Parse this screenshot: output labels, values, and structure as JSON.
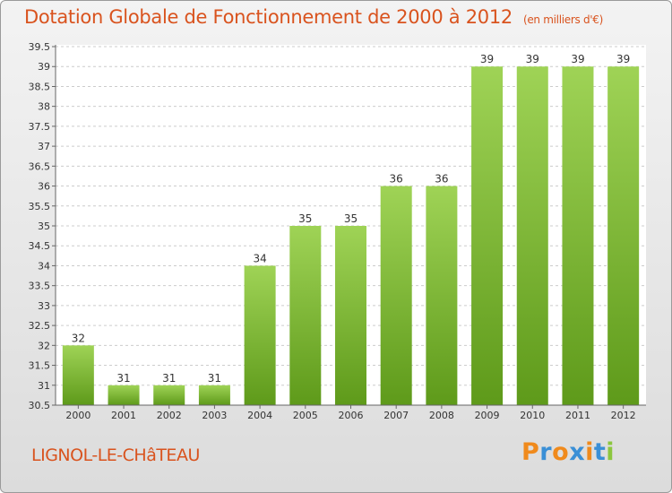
{
  "title": "Dotation Globale de Fonctionnement de 2000 à 2012",
  "unit": "(en milliers d'€)",
  "location": "LIGNOL-LE-CHâTEAU",
  "logo": {
    "text": "Proxiti",
    "colors": [
      "#f08a1c",
      "#3a8fd6",
      "#f08a1c",
      "#3a8fd6",
      "#f08a1c",
      "#3a8fd6",
      "#8cc63e"
    ]
  },
  "colors": {
    "accent": "#d9531e",
    "bar_light": "#9fd356",
    "bar_dark": "#5e9a1a"
  },
  "chart_data": {
    "type": "bar",
    "categories": [
      "2000",
      "2001",
      "2002",
      "2003",
      "2004",
      "2005",
      "2006",
      "2007",
      "2008",
      "2009",
      "2010",
      "2011",
      "2012"
    ],
    "values": [
      32,
      31,
      31,
      31,
      34,
      35,
      35,
      36,
      36,
      39,
      39,
      39,
      39
    ],
    "data_labels": [
      "32",
      "31",
      "31",
      "31",
      "34",
      "35",
      "35",
      "36",
      "36",
      "39",
      "39",
      "39",
      "39"
    ],
    "ylim": [
      30.5,
      39.5
    ],
    "yticks": [
      30.5,
      31,
      31.5,
      32,
      32.5,
      33,
      33.5,
      34,
      34.5,
      35,
      35.5,
      36,
      36.5,
      37,
      37.5,
      38,
      38.5,
      39,
      39.5
    ],
    "grid": true,
    "xlabel": "",
    "ylabel": ""
  }
}
